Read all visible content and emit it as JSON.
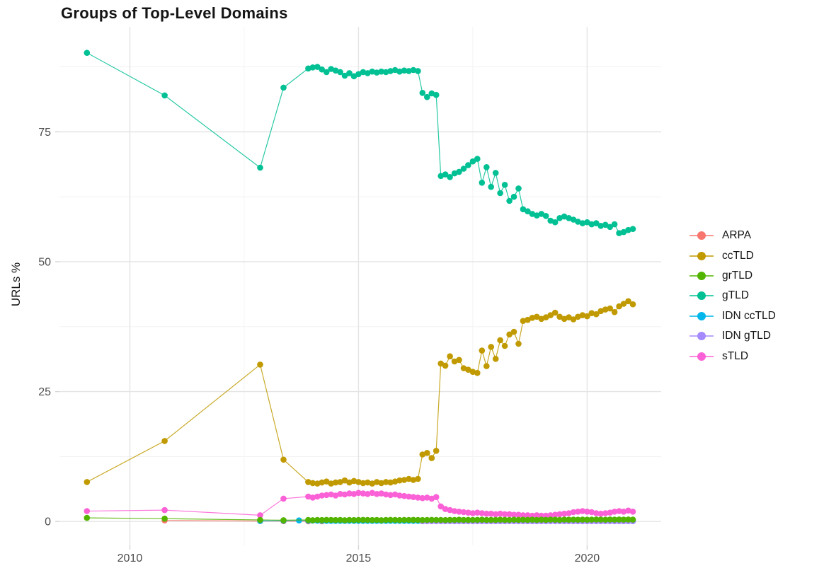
{
  "chart_data": {
    "type": "line",
    "title": "Groups of Top-Level Domains",
    "xlabel": "",
    "ylabel": "URLs %",
    "xlim": [
      2008.46,
      2021.62
    ],
    "ylim": [
      -4.6,
      95.2
    ],
    "x_ticks": [
      2010,
      2015,
      2020
    ],
    "x_tick_labels": [
      "2010",
      "2015",
      "2020"
    ],
    "x_minor_ticks": [
      2012.5,
      2017.5
    ],
    "y_ticks": [
      0,
      25,
      50,
      75
    ],
    "y_tick_labels": [
      "0",
      "25",
      "50",
      "75"
    ],
    "y_minor_ticks": [
      12.5,
      37.5,
      62.5,
      87.5
    ],
    "grid": true,
    "legend_position": "right",
    "x_dense": {
      "start": 2013.9,
      "step": 0.1,
      "count": 72
    },
    "z_order": [
      0,
      4,
      5,
      6,
      2,
      1,
      3
    ],
    "series": [
      {
        "name": "ARPA",
        "color": "#F8766D",
        "pre": [
          [
            2010.76,
            0.2
          ],
          [
            2012.85,
            0.08
          ],
          [
            2013.36,
            0.05
          ],
          [
            2013.9,
            0.04
          ],
          [
            2014.2,
            0.03
          ]
        ]
      },
      {
        "name": "ccTLD",
        "color": "#C09A00",
        "pre": [
          [
            2009.06,
            7.6
          ],
          [
            2010.76,
            15.5
          ],
          [
            2012.85,
            30.2
          ],
          [
            2013.36,
            11.9
          ]
        ],
        "dense": [
          7.6,
          7.4,
          7.3,
          7.5,
          7.7,
          7.3,
          7.5,
          7.6,
          7.9,
          7.5,
          7.8,
          7.6,
          7.4,
          7.5,
          7.3,
          7.6,
          7.4,
          7.6,
          7.5,
          7.7,
          7.9,
          8.0,
          8.2,
          8.0,
          8.2,
          12.9,
          13.2,
          12.2,
          13.6,
          30.4,
          30.0,
          31.8,
          30.8,
          31.1,
          29.5,
          29.2,
          28.8,
          28.6,
          32.9,
          29.9,
          33.6,
          31.3,
          34.9,
          33.8,
          36.0,
          36.5,
          34.2,
          38.6,
          38.8,
          39.2,
          39.4,
          39.0,
          39.3,
          39.7,
          40.2,
          39.4,
          39.0,
          39.3,
          38.9,
          39.4,
          39.7,
          39.5,
          40.1,
          39.9,
          40.5,
          40.8,
          41.0,
          40.3,
          41.4,
          41.9,
          42.4,
          41.8
        ]
      },
      {
        "name": "grTLD",
        "color": "#53B400",
        "pre": [
          [
            2009.06,
            0.7
          ],
          [
            2010.76,
            0.55
          ],
          [
            2012.85,
            0.3
          ],
          [
            2013.36,
            0.25
          ]
        ],
        "dense": [
          0.3,
          0.25,
          0.3,
          0.28,
          0.32,
          0.3,
          0.27,
          0.3,
          0.25,
          0.3,
          0.28,
          0.3,
          0.32,
          0.3,
          0.28,
          0.3,
          0.25,
          0.3,
          0.32,
          0.3,
          0.28,
          0.3,
          0.3,
          0.32,
          0.3,
          0.28,
          0.3,
          0.32,
          0.3,
          0.3,
          0.28,
          0.32,
          0.3,
          0.34,
          0.3,
          0.32,
          0.3,
          0.32,
          0.34,
          0.3,
          0.32,
          0.3,
          0.34,
          0.32,
          0.3,
          0.34,
          0.32,
          0.34,
          0.32,
          0.34,
          0.3,
          0.34,
          0.32,
          0.36,
          0.34,
          0.32,
          0.36,
          0.34,
          0.36,
          0.34,
          0.36,
          0.34,
          0.36,
          0.38,
          0.36,
          0.34,
          0.38,
          0.36,
          0.38,
          0.36,
          0.38,
          0.36
        ]
      },
      {
        "name": "gTLD",
        "color": "#00C094",
        "pre": [
          [
            2009.06,
            90.2
          ],
          [
            2010.76,
            82.0
          ],
          [
            2012.85,
            68.1
          ],
          [
            2013.36,
            83.5
          ]
        ],
        "dense": [
          87.2,
          87.4,
          87.5,
          87.0,
          86.5,
          87.1,
          86.8,
          86.5,
          85.8,
          86.3,
          85.7,
          86.1,
          86.5,
          86.3,
          86.6,
          86.4,
          86.6,
          86.5,
          86.7,
          86.9,
          86.6,
          86.8,
          86.7,
          86.9,
          86.7,
          82.5,
          81.7,
          82.4,
          82.1,
          66.5,
          66.8,
          66.3,
          67.0,
          67.3,
          67.9,
          68.6,
          69.3,
          69.8,
          65.2,
          68.2,
          64.4,
          67.1,
          63.2,
          64.8,
          61.7,
          62.5,
          64.1,
          60.1,
          59.7,
          59.2,
          58.9,
          59.2,
          58.8,
          57.9,
          57.6,
          58.4,
          58.7,
          58.4,
          58.1,
          57.7,
          57.4,
          57.6,
          57.2,
          57.4,
          56.9,
          57.1,
          56.7,
          57.2,
          55.5,
          55.7,
          56.1,
          56.3
        ]
      },
      {
        "name": "IDN ccTLD",
        "color": "#00B6EB",
        "pre": [
          [
            2012.85,
            0.1
          ],
          [
            2013.36,
            0.15
          ],
          [
            2013.7,
            0.2
          ]
        ],
        "dense": [
          0.18,
          0.16,
          0.15,
          0.14,
          0.13,
          0.13,
          0.12,
          0.12,
          0.12,
          0.12,
          0.12,
          0.12,
          0.12,
          0.12,
          0.12,
          0.12,
          0.12,
          0.12,
          0.12,
          0.12,
          0.12,
          0.12,
          0.12,
          0.12,
          0.12,
          0.12,
          0.12,
          0.12,
          0.12,
          0.12,
          0.12,
          0.12,
          0.12,
          0.12,
          0.12,
          0.12,
          0.12,
          0.12,
          0.12,
          0.12,
          0.12,
          0.12,
          0.12,
          0.12,
          0.12,
          0.12,
          0.12,
          0.12,
          0.12,
          0.12,
          0.12,
          0.12,
          0.12,
          0.12,
          0.12,
          0.12,
          0.12,
          0.12,
          0.12,
          0.12,
          0.12,
          0.12,
          0.12,
          0.12,
          0.12,
          0.12,
          0.12,
          0.12,
          0.12,
          0.12,
          0.12,
          0.12
        ]
      },
      {
        "name": "IDN gTLD",
        "color": "#A58AFF",
        "pre": [],
        "dense": [
          null,
          null,
          null,
          null,
          null,
          null,
          null,
          null,
          null,
          null,
          null,
          null,
          null,
          null,
          null,
          null,
          null,
          null,
          null,
          null,
          null,
          null,
          null,
          null,
          null,
          0.06,
          0.05,
          0.06,
          0.05,
          0.06,
          0.05,
          0.06,
          0.05,
          0.06,
          0.05,
          0.06,
          0.05,
          0.06,
          0.05,
          0.06,
          0.05,
          0.06,
          0.05,
          0.06,
          0.05,
          0.06,
          0.05,
          0.06,
          0.05,
          0.06,
          0.05,
          0.06,
          0.05,
          0.06,
          0.05,
          0.06,
          0.05,
          0.06,
          0.05,
          0.06,
          0.05,
          0.06,
          0.05,
          0.06,
          0.05,
          0.06,
          0.05,
          0.06,
          0.05,
          0.06,
          0.05,
          0.06
        ]
      },
      {
        "name": "sTLD",
        "color": "#FB61D7",
        "pre": [
          [
            2009.06,
            2.0
          ],
          [
            2010.76,
            2.2
          ],
          [
            2012.85,
            1.2
          ],
          [
            2013.36,
            4.4
          ]
        ],
        "dense": [
          4.8,
          4.6,
          4.8,
          5.0,
          5.1,
          5.2,
          5.0,
          5.3,
          5.2,
          5.4,
          5.3,
          5.5,
          5.4,
          5.3,
          5.5,
          5.3,
          5.4,
          5.2,
          5.1,
          5.2,
          5.0,
          4.9,
          4.8,
          4.7,
          4.6,
          4.5,
          4.6,
          4.4,
          4.7,
          2.9,
          2.4,
          2.2,
          2.0,
          1.9,
          1.8,
          1.7,
          1.6,
          1.7,
          1.6,
          1.5,
          1.5,
          1.4,
          1.5,
          1.4,
          1.4,
          1.3,
          1.3,
          1.2,
          1.2,
          1.1,
          1.2,
          1.1,
          1.1,
          1.2,
          1.3,
          1.4,
          1.5,
          1.6,
          1.8,
          1.9,
          2.0,
          1.9,
          1.8,
          1.6,
          1.5,
          1.6,
          1.7,
          1.9,
          2.0,
          1.9,
          2.1,
          1.9
        ]
      }
    ],
    "style": {
      "grid_major_color": "#E4E4E4",
      "grid_minor_color": "#F1F1F1",
      "tick_mark_color": "#D5D5D5",
      "tick_label_color": "#4d4d4d",
      "title_color": "#141414",
      "background": "#ffffff"
    }
  }
}
